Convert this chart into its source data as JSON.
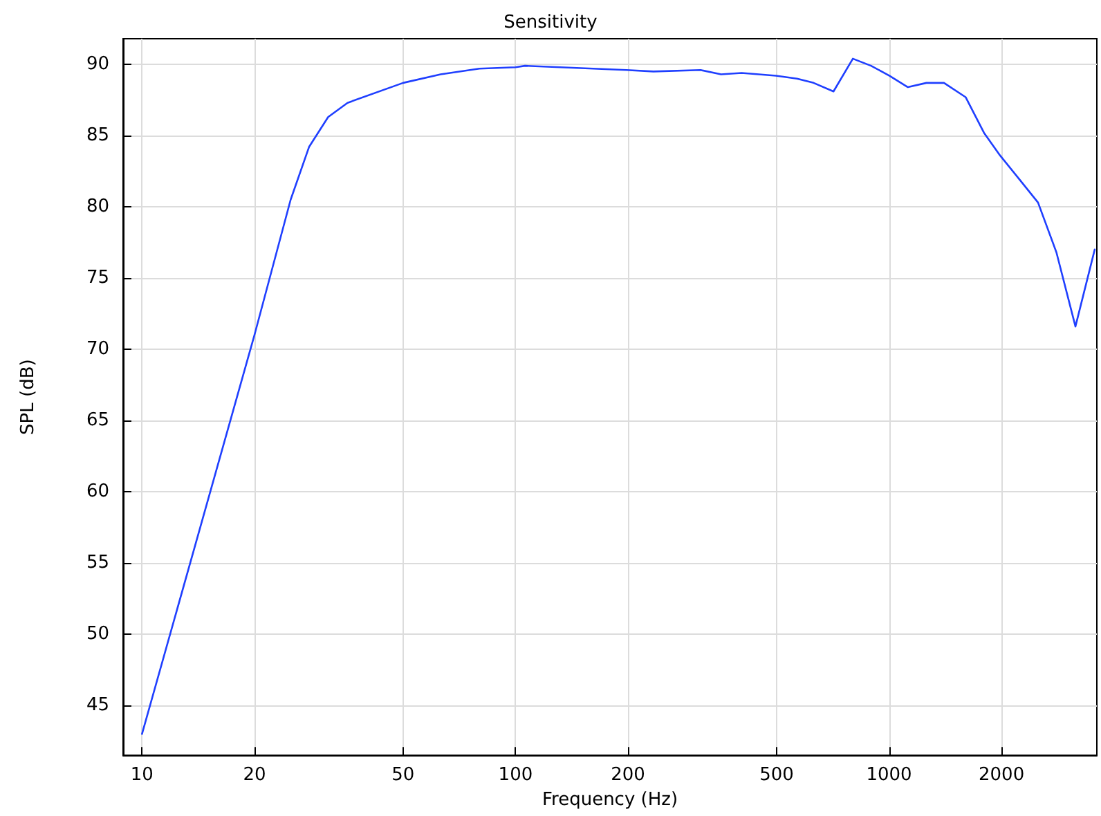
{
  "chart_data": {
    "type": "line",
    "title": "Sensitivity",
    "xlabel": "Frequency (Hz)",
    "ylabel": "SPL (dB)",
    "x": [
      10,
      20,
      25,
      28,
      31.5,
      35.5,
      50,
      63,
      80,
      100,
      106,
      198,
      234,
      313,
      355,
      403,
      498,
      567,
      628,
      710,
      800,
      895,
      1003,
      1123,
      1259,
      1403,
      1603,
      1795,
      1983,
      2222,
      2505,
      2806,
      3155,
      3553
    ],
    "series": [
      {
        "color": "#1f3fff",
        "values": [
          43.0,
          71.0,
          80.5,
          84.2,
          86.3,
          87.3,
          88.7,
          89.3,
          89.7,
          89.8,
          89.9,
          89.6,
          89.5,
          89.6,
          89.3,
          89.4,
          89.2,
          89.0,
          88.7,
          88.1,
          90.4,
          89.9,
          89.2,
          88.4,
          88.7,
          88.7,
          87.7,
          85.2,
          83.6,
          82.0,
          80.3,
          76.8,
          71.6,
          77.0
        ]
      }
    ],
    "log": "x",
    "xlim": [
      8.9,
      3600
    ],
    "xticks": [
      10,
      20,
      50,
      100,
      200,
      500,
      1000,
      2000
    ],
    "ylim": [
      41.5,
      91.8
    ],
    "yticks": [
      45,
      50,
      55,
      60,
      65,
      70,
      75,
      80,
      85,
      90
    ],
    "grid": true,
    "marker": "none",
    "line_style": "solid"
  }
}
